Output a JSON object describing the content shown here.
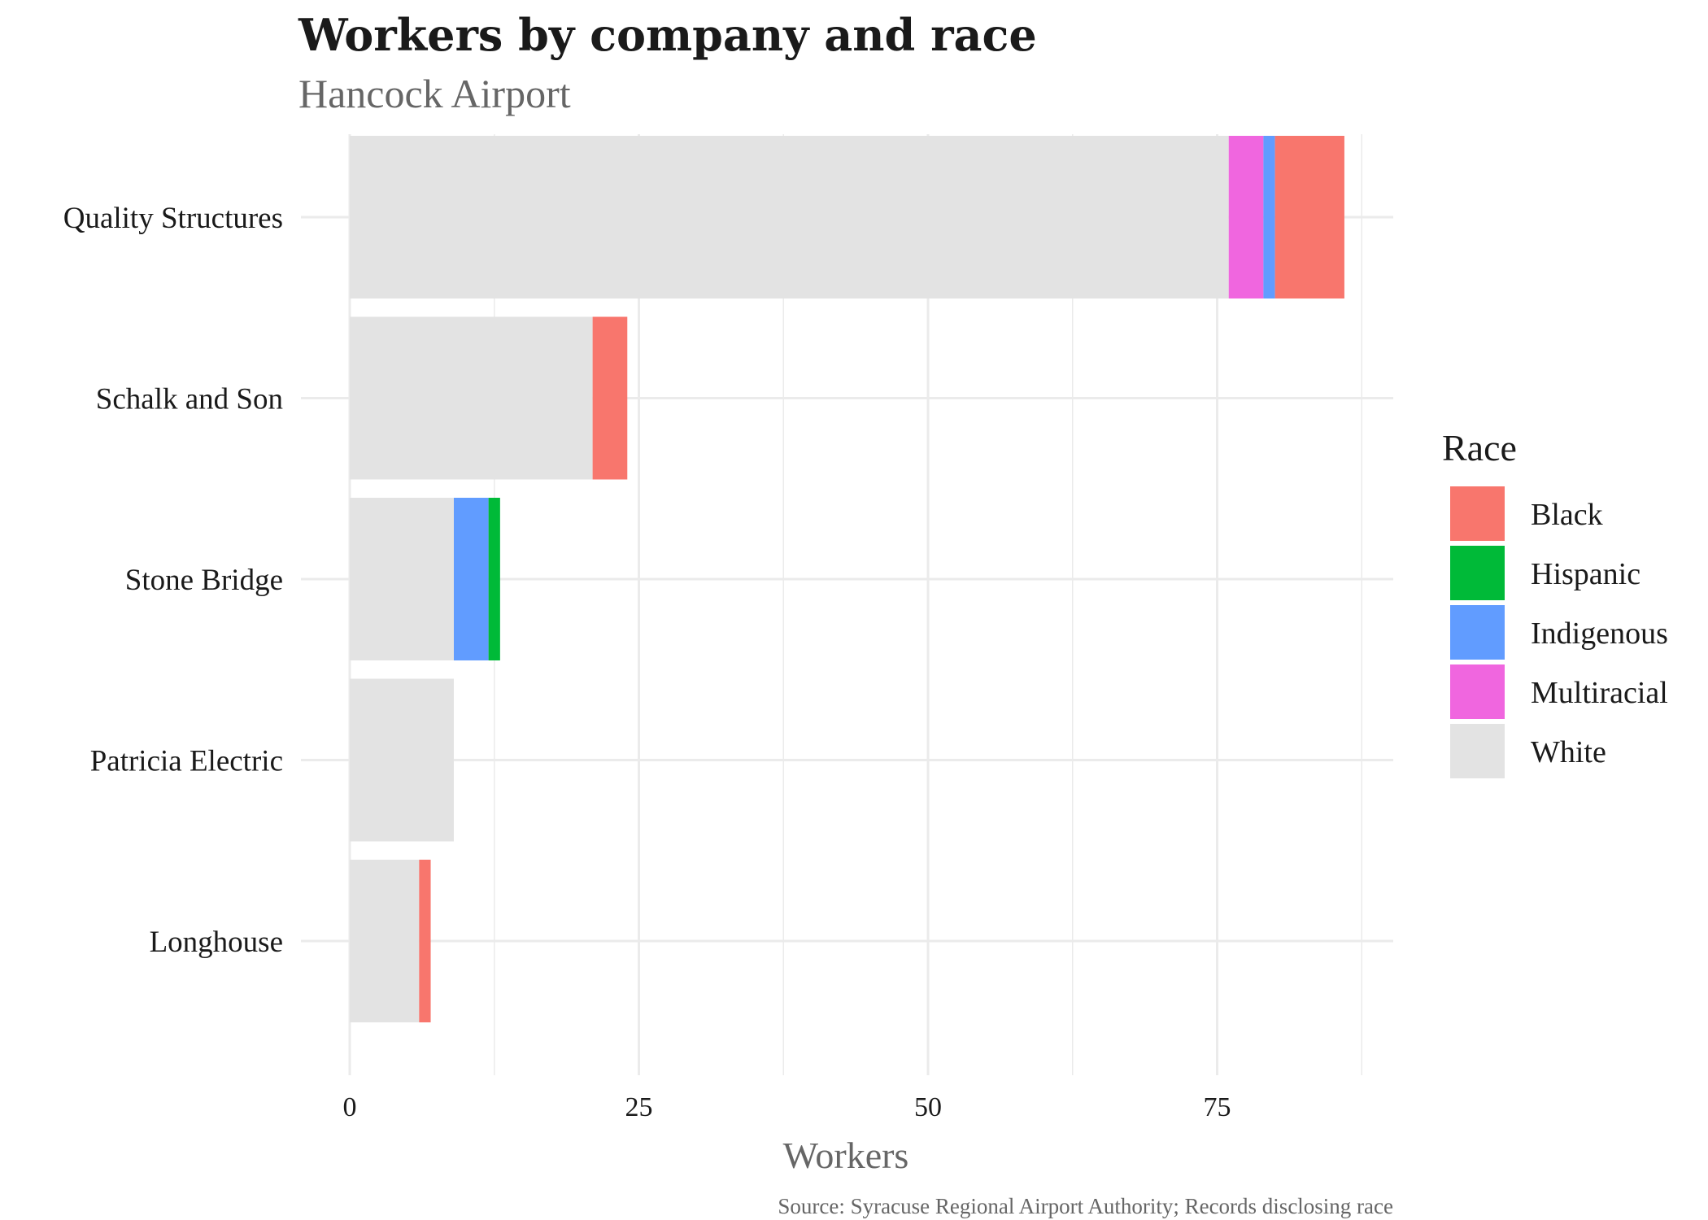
{
  "chart_data": {
    "type": "bar",
    "orientation": "horizontal",
    "stacked": true,
    "title": "Workers by company and race",
    "subtitle": "Hancock Airport",
    "xlabel": "Workers",
    "ylabel": "",
    "caption": "Source: Syracuse Regional Airport Authority; Records disclosing race",
    "categories": [
      "Quality Structures",
      "Schalk and Son",
      "Stone Bridge",
      "Patricia Electric",
      "Longhouse"
    ],
    "series": [
      {
        "name": "White",
        "color": "#e3e3e3",
        "values": [
          76,
          21,
          9,
          9,
          6
        ]
      },
      {
        "name": "Multiracial",
        "color": "#f066df",
        "values": [
          3,
          0,
          0,
          0,
          0
        ]
      },
      {
        "name": "Indigenous",
        "color": "#619cff",
        "values": [
          1,
          0,
          3,
          0,
          0
        ]
      },
      {
        "name": "Hispanic",
        "color": "#00ba38",
        "values": [
          0,
          0,
          1,
          0,
          0
        ]
      },
      {
        "name": "Black",
        "color": "#f8766d",
        "values": [
          6,
          3,
          0,
          0,
          1
        ]
      }
    ],
    "xlim": [
      0,
      90
    ],
    "xticks": [
      0,
      25,
      50,
      75
    ],
    "grid": true,
    "legend": {
      "title": "Race",
      "position": "right",
      "items": [
        {
          "name": "Black",
          "color": "#f8766d"
        },
        {
          "name": "Hispanic",
          "color": "#00ba38"
        },
        {
          "name": "Indigenous",
          "color": "#619cff"
        },
        {
          "name": "Multiracial",
          "color": "#f066df"
        },
        {
          "name": "White",
          "color": "#e3e3e3"
        }
      ]
    }
  }
}
